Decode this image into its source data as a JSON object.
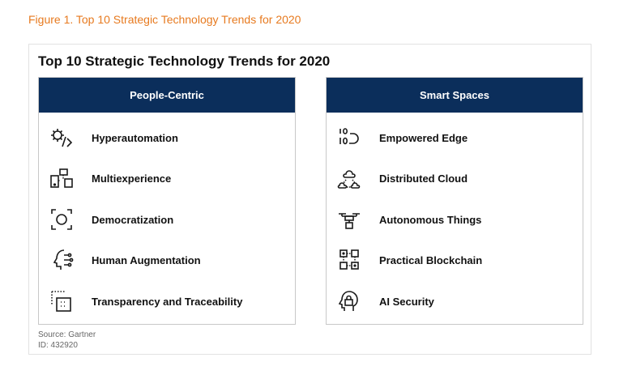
{
  "figure_caption": "Figure 1. Top 10 Strategic Technology Trends for 2020",
  "title": "Top 10 Strategic Technology Trends for 2020",
  "panels": [
    {
      "header": "People-Centric",
      "items": [
        {
          "label": "Hyperautomation",
          "icon": "gear-code-icon"
        },
        {
          "label": "Multiexperience",
          "icon": "devices-icon"
        },
        {
          "label": "Democratization",
          "icon": "focus-person-icon"
        },
        {
          "label": "Human Augmentation",
          "icon": "head-circuit-icon"
        },
        {
          "label": "Transparency and Traceability",
          "icon": "dotted-box-icon"
        }
      ]
    },
    {
      "header": "Smart Spaces",
      "items": [
        {
          "label": "Empowered Edge",
          "icon": "binary-edge-icon"
        },
        {
          "label": "Distributed Cloud",
          "icon": "cloud-network-icon"
        },
        {
          "label": "Autonomous Things",
          "icon": "drone-icon"
        },
        {
          "label": "Practical Blockchain",
          "icon": "blocks-icon"
        },
        {
          "label": "AI Security",
          "icon": "lock-head-icon"
        }
      ]
    }
  ],
  "source_line": "Source: Gartner",
  "id_line": "ID: 432920",
  "colors": {
    "caption": "#e77a1f",
    "header_bg": "#0b2e5b",
    "icon": "#1a1a1a"
  }
}
